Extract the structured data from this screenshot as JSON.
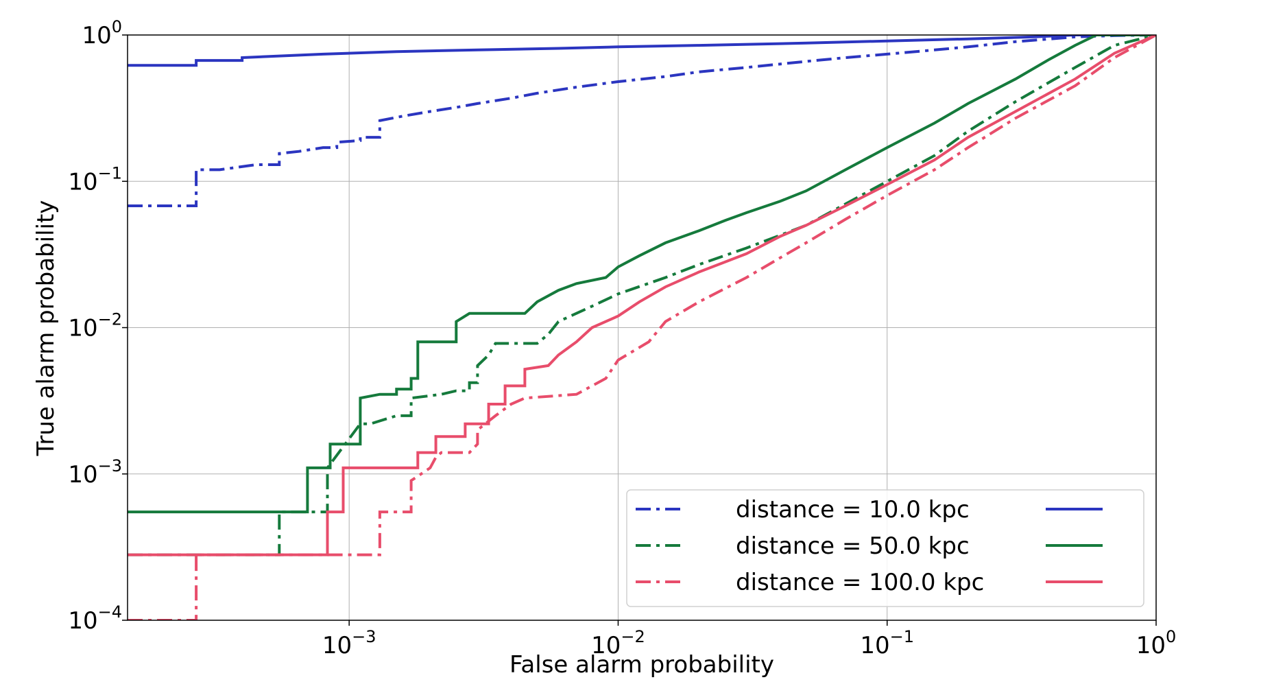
{
  "chart_data": {
    "type": "line",
    "xscale": "log",
    "yscale": "log",
    "xlim": [
      0.00015,
      1.0
    ],
    "ylim": [
      0.0001,
      1.0
    ],
    "xlabel": "False alarm probability",
    "ylabel": "True alarm probability",
    "grid": true,
    "legend_position": "lower-right",
    "x_ticks": [
      {
        "value": 0.001,
        "base": "10",
        "exp": "−3"
      },
      {
        "value": 0.01,
        "base": "10",
        "exp": "−2"
      },
      {
        "value": 0.1,
        "base": "10",
        "exp": "−1"
      },
      {
        "value": 1.0,
        "base": "10",
        "exp": "0"
      }
    ],
    "y_ticks": [
      {
        "value": 0.0001,
        "base": "10",
        "exp": "−4"
      },
      {
        "value": 0.001,
        "base": "10",
        "exp": "−3"
      },
      {
        "value": 0.01,
        "base": "10",
        "exp": "−2"
      },
      {
        "value": 0.1,
        "base": "10",
        "exp": "−1"
      },
      {
        "value": 1.0,
        "base": "10",
        "exp": "0"
      }
    ],
    "legend": [
      {
        "label": "distance = 10.0 kpc",
        "color": "#2b35c0"
      },
      {
        "label": "distance = 50.0 kpc",
        "color": "#157a3c"
      },
      {
        "label": "distance = 100.0 kpc",
        "color": "#e84d6b"
      }
    ],
    "series": [
      {
        "distance": "10.0 kpc",
        "style": "solid",
        "color": "#2b35c0",
        "x": [
          0.00015,
          0.00027,
          0.00027,
          0.0004,
          0.0004,
          0.0008,
          0.0015,
          0.003,
          0.006,
          0.01,
          0.02,
          0.05,
          0.1,
          0.2,
          0.35,
          0.5,
          1.0
        ],
        "y": [
          0.62,
          0.62,
          0.67,
          0.67,
          0.7,
          0.74,
          0.77,
          0.79,
          0.81,
          0.83,
          0.85,
          0.88,
          0.91,
          0.94,
          0.97,
          1.0,
          1.0
        ]
      },
      {
        "distance": "10.0 kpc",
        "style": "dashdot",
        "color": "#2b35c0",
        "x": [
          0.00015,
          0.00027,
          0.00027,
          0.00033,
          0.00045,
          0.00055,
          0.00055,
          0.00065,
          0.0008,
          0.0009,
          0.0009,
          0.0011,
          0.0011,
          0.0013,
          0.0013,
          0.0016,
          0.002,
          0.0025,
          0.003,
          0.004,
          0.005,
          0.007,
          0.01,
          0.015,
          0.02,
          0.03,
          0.05,
          0.07,
          0.1,
          0.15,
          0.2,
          0.3,
          0.5,
          0.7,
          1.0
        ],
        "y": [
          0.068,
          0.068,
          0.12,
          0.12,
          0.13,
          0.13,
          0.155,
          0.16,
          0.17,
          0.17,
          0.185,
          0.19,
          0.2,
          0.2,
          0.26,
          0.28,
          0.3,
          0.32,
          0.34,
          0.37,
          0.4,
          0.44,
          0.48,
          0.52,
          0.56,
          0.6,
          0.66,
          0.7,
          0.74,
          0.79,
          0.83,
          0.9,
          0.97,
          0.99,
          1.0
        ]
      },
      {
        "distance": "50.0 kpc",
        "style": "solid",
        "color": "#157a3c",
        "x": [
          0.00015,
          0.0007,
          0.0007,
          0.00085,
          0.00085,
          0.0011,
          0.0011,
          0.0013,
          0.0015,
          0.0015,
          0.0017,
          0.0017,
          0.0018,
          0.0018,
          0.0025,
          0.0025,
          0.0028,
          0.0045,
          0.005,
          0.006,
          0.007,
          0.009,
          0.01,
          0.012,
          0.015,
          0.02,
          0.025,
          0.03,
          0.04,
          0.05,
          0.07,
          0.1,
          0.15,
          0.2,
          0.3,
          0.4,
          0.5,
          0.6,
          1.0
        ],
        "y": [
          0.00055,
          0.00055,
          0.0011,
          0.0011,
          0.0016,
          0.0016,
          0.0033,
          0.0035,
          0.0035,
          0.0038,
          0.0038,
          0.0045,
          0.0045,
          0.008,
          0.008,
          0.011,
          0.0125,
          0.0125,
          0.015,
          0.018,
          0.02,
          0.022,
          0.026,
          0.031,
          0.038,
          0.046,
          0.054,
          0.061,
          0.073,
          0.086,
          0.12,
          0.17,
          0.25,
          0.34,
          0.5,
          0.68,
          0.85,
          1.0,
          1.0
        ]
      },
      {
        "distance": "50.0 kpc",
        "style": "dashdot",
        "color": "#157a3c",
        "x": [
          0.00015,
          0.00055,
          0.00055,
          0.00083,
          0.00083,
          0.0011,
          0.0012,
          0.0015,
          0.0017,
          0.0017,
          0.0022,
          0.0025,
          0.0028,
          0.0028,
          0.003,
          0.003,
          0.0033,
          0.0035,
          0.005,
          0.0055,
          0.006,
          0.008,
          0.01,
          0.015,
          0.02,
          0.03,
          0.05,
          0.07,
          0.1,
          0.15,
          0.2,
          0.3,
          0.5,
          0.7,
          1.0
        ],
        "y": [
          0.00028,
          0.00028,
          0.00055,
          0.00055,
          0.0011,
          0.0022,
          0.0022,
          0.0025,
          0.0025,
          0.0033,
          0.0035,
          0.0037,
          0.0037,
          0.0042,
          0.0042,
          0.0055,
          0.0065,
          0.0078,
          0.0078,
          0.009,
          0.011,
          0.014,
          0.017,
          0.022,
          0.027,
          0.035,
          0.05,
          0.07,
          0.1,
          0.15,
          0.22,
          0.35,
          0.6,
          0.85,
          1.0
        ]
      },
      {
        "distance": "100.0 kpc",
        "style": "solid",
        "color": "#e84d6b",
        "x": [
          0.00015,
          0.00083,
          0.00083,
          0.00095,
          0.00095,
          0.0018,
          0.0018,
          0.0021,
          0.0021,
          0.0027,
          0.0027,
          0.0033,
          0.0033,
          0.0038,
          0.0038,
          0.0045,
          0.0045,
          0.0055,
          0.006,
          0.007,
          0.008,
          0.01,
          0.012,
          0.015,
          0.02,
          0.03,
          0.04,
          0.05,
          0.07,
          0.1,
          0.15,
          0.2,
          0.3,
          0.5,
          0.7,
          1.0
        ],
        "y": [
          0.00028,
          0.00028,
          0.00055,
          0.00055,
          0.0011,
          0.0011,
          0.0014,
          0.0014,
          0.0018,
          0.0018,
          0.0022,
          0.0022,
          0.003,
          0.003,
          0.004,
          0.004,
          0.0052,
          0.0055,
          0.0065,
          0.008,
          0.01,
          0.012,
          0.015,
          0.019,
          0.024,
          0.032,
          0.042,
          0.05,
          0.068,
          0.095,
          0.14,
          0.2,
          0.3,
          0.5,
          0.75,
          1.0
        ]
      },
      {
        "distance": "100.0 kpc",
        "style": "dashdot",
        "color": "#e84d6b",
        "x": [
          0.00015,
          0.00027,
          0.00027,
          0.00045,
          0.00083,
          0.0013,
          0.0013,
          0.0017,
          0.0017,
          0.002,
          0.0021,
          0.0022,
          0.0028,
          0.003,
          0.003,
          0.0035,
          0.004,
          0.0045,
          0.007,
          0.009,
          0.01,
          0.013,
          0.015,
          0.02,
          0.03,
          0.04,
          0.05,
          0.07,
          0.1,
          0.15,
          0.2,
          0.3,
          0.5,
          0.7,
          1.0
        ],
        "y": [
          0.0001,
          0.0001,
          0.00028,
          0.00028,
          0.00028,
          0.00028,
          0.00055,
          0.00055,
          0.0009,
          0.0011,
          0.0013,
          0.0014,
          0.0014,
          0.0016,
          0.002,
          0.0025,
          0.003,
          0.0033,
          0.0035,
          0.0045,
          0.006,
          0.008,
          0.011,
          0.015,
          0.022,
          0.03,
          0.038,
          0.055,
          0.08,
          0.12,
          0.17,
          0.27,
          0.45,
          0.7,
          1.0
        ]
      }
    ]
  }
}
